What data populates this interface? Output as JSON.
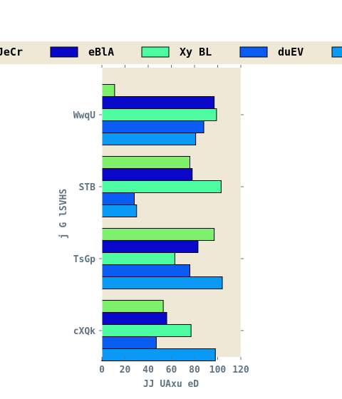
{
  "chart_data": {
    "type": "bar",
    "orientation": "horizontal",
    "title": "",
    "xlabel": "JJ  UAxu eD",
    "ylabel": "j G lSVHS",
    "xlim": [
      0,
      120
    ],
    "xticks": [
      0,
      20,
      40,
      60,
      80,
      100,
      120
    ],
    "categories": [
      "WwqU",
      "STB",
      "TsGp",
      "cXQk"
    ],
    "grid": false,
    "legend_position": "top",
    "background": "#efe8d6",
    "series": [
      {
        "name": "",
        "color": "#7ef06b",
        "values": [
          11,
          76,
          97,
          53
        ]
      },
      {
        "name": "eBlA",
        "color": "#0a08c8",
        "values": [
          97,
          78,
          83,
          56
        ]
      },
      {
        "name": "Xy BL",
        "color": "#4dfca0",
        "values": [
          99,
          103,
          63,
          77
        ]
      },
      {
        "name": "duEV",
        "color": "#0a5cf2",
        "values": [
          88,
          28,
          76,
          47
        ]
      },
      {
        "name": "",
        "color": "#0a9af5",
        "values": [
          81,
          30,
          104,
          98
        ]
      }
    ],
    "legend_entries": [
      {
        "name": "JeCr",
        "color": "#7ef06b"
      },
      {
        "name": "eBlA",
        "color": "#0a08c8"
      },
      {
        "name": "Xy BL",
        "color": "#4dfca0"
      },
      {
        "name": "duEV",
        "color": "#0a5cf2"
      },
      {
        "name": "",
        "color": "#0a9af5"
      }
    ]
  }
}
